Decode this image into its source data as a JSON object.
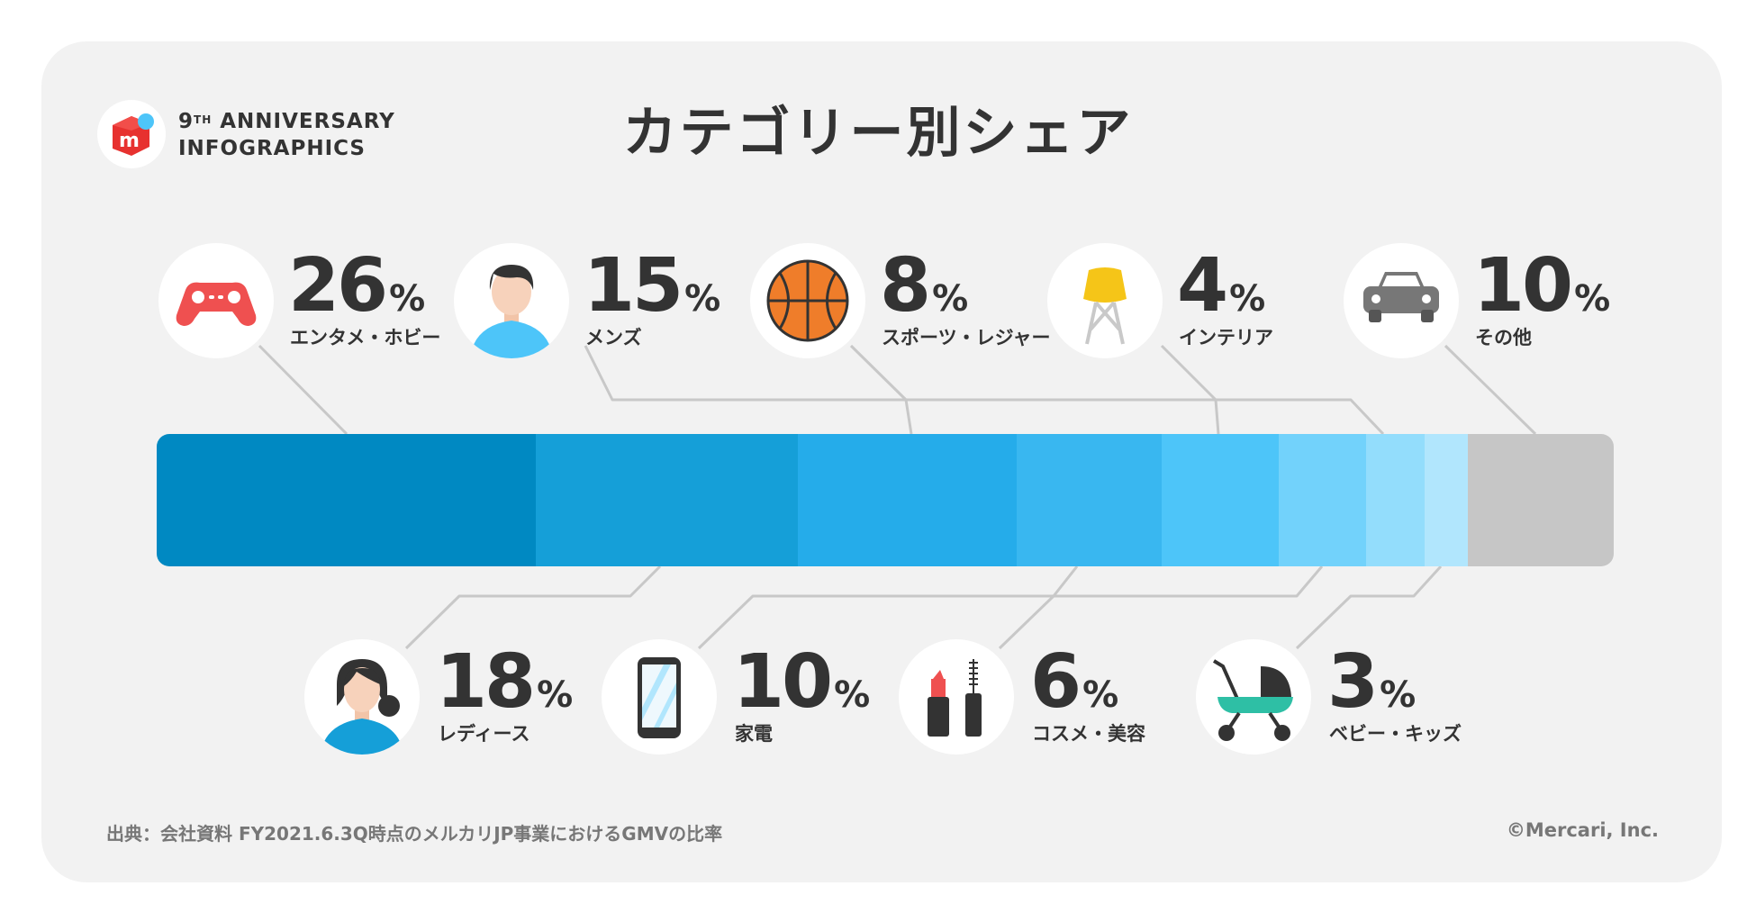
{
  "header": {
    "brand_line1": "9",
    "brand_sup": "TH",
    "brand_line1_rest": " ANNIVERSARY",
    "brand_line2": "INFOGRAPHICS",
    "logo_letter": "m",
    "title": "カテゴリー別シェア"
  },
  "chart_data": {
    "type": "stacked-bar",
    "title": "カテゴリー別シェア",
    "unit": "%",
    "categories": [
      "エンタメ・ホビー",
      "レディース",
      "メンズ",
      "家電",
      "スポーツ・レジャー",
      "コスメ・美容",
      "インテリア",
      "ベビー・キッズ",
      "その他"
    ],
    "values": [
      26,
      18,
      15,
      10,
      8,
      6,
      4,
      3,
      10
    ],
    "colors": [
      "#0089c2",
      "#159fd8",
      "#25acea",
      "#39b7f0",
      "#4dc5f9",
      "#72d2fb",
      "#93ddfc",
      "#b1e6fd",
      "#c6c6c6"
    ],
    "labels": [
      {
        "value": "26",
        "name": "エンタメ・ホビー",
        "icon": "game-controller-icon"
      },
      {
        "value": "18",
        "name": "レディース",
        "icon": "woman-avatar-icon"
      },
      {
        "value": "15",
        "name": "メンズ",
        "icon": "man-avatar-icon"
      },
      {
        "value": "10",
        "name": "家電",
        "icon": "smartphone-icon"
      },
      {
        "value": "8",
        "name": "スポーツ・レジャー",
        "icon": "basketball-icon"
      },
      {
        "value": "6",
        "name": "コスメ・美容",
        "icon": "lipstick-mascara-icon"
      },
      {
        "value": "4",
        "name": "インテリア",
        "icon": "chair-icon"
      },
      {
        "value": "3",
        "name": "ベビー・キッズ",
        "icon": "stroller-icon"
      },
      {
        "value": "10",
        "name": "その他",
        "icon": "car-icon"
      }
    ]
  },
  "footer": {
    "source": "出典：会社資料 FY2021.6.3Q時点のメルカリJP事業におけるGMVの比率",
    "copyright": "©Mercari, Inc."
  }
}
